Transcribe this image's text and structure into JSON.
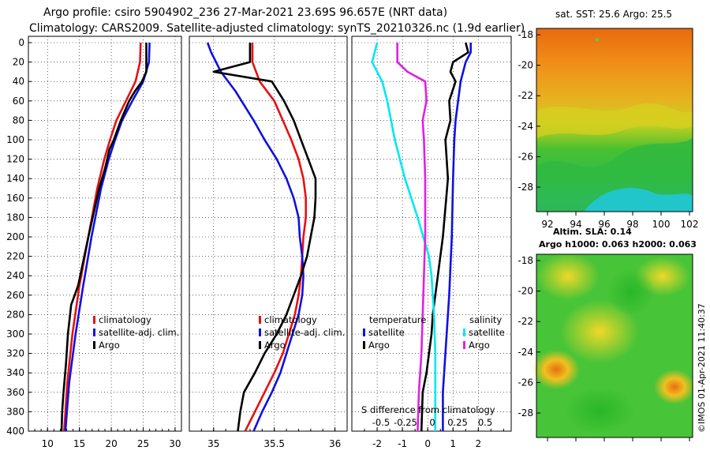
{
  "header": {
    "title_line1": "Argo profile: csiro 5904902_236 27-Mar-2021 23.69S 96.657E (NRT data)",
    "title_line2": "Climatology: CARS2009. Satellite-adjusted climatology: synTS_20210326.nc (1.9d earlier)"
  },
  "colors": {
    "climatology": "#e81010",
    "satellite": "#1010e0",
    "argo": "#000000",
    "sat_salinity": "#00e8f0",
    "argo_salinity": "#e020e0"
  },
  "map_sst": {
    "title": "sat. SST: 25.6  Argo: 25.5",
    "lat_ticks": [
      "-18",
      "-20",
      "-22",
      "-24",
      "-26",
      "-28"
    ],
    "lon_ticks": [
      "92",
      "94",
      "96",
      "98",
      "100",
      "102"
    ]
  },
  "map_sla": {
    "title_line1": "Altim. SLA: 0.14",
    "title_line2": "Argo h1000: 0.063 h2000: 0.063",
    "lat_ticks": [
      "-18",
      "-20",
      "-22",
      "-24",
      "-26",
      "-28"
    ]
  },
  "credit": "©IMOS 01-Apr-2021 11:40:37",
  "chart_data": [
    {
      "type": "line",
      "name": "temperature",
      "xlim": [
        7,
        31
      ],
      "ylim": [
        400,
        0
      ],
      "yticks": [
        "0",
        "20",
        "40",
        "60",
        "80",
        "100",
        "120",
        "140",
        "160",
        "180",
        "200",
        "220",
        "240",
        "260",
        "280",
        "300",
        "320",
        "340",
        "360",
        "380",
        "400"
      ],
      "xticks": [
        "10",
        "15",
        "20",
        "25",
        "30"
      ],
      "legend": [
        "climatology",
        "satellite-adj. clim.",
        "Argo"
      ],
      "series": [
        {
          "name": "climatology",
          "color_key": "climatology",
          "depth": [
            0,
            20,
            40,
            60,
            80,
            100,
            120,
            150,
            200,
            250,
            300,
            350,
            400
          ],
          "values": [
            24.6,
            24.5,
            23.8,
            22.3,
            20.8,
            19.8,
            18.9,
            17.8,
            16.4,
            15.0,
            13.9,
            13.1,
            12.6
          ]
        },
        {
          "name": "satellite-adj. clim.",
          "color_key": "satellite",
          "depth": [
            0,
            20,
            40,
            60,
            80,
            100,
            120,
            150,
            200,
            250,
            300,
            350,
            400
          ],
          "values": [
            26.0,
            25.9,
            25.0,
            23.3,
            21.7,
            20.6,
            19.6,
            18.4,
            16.9,
            15.6,
            14.4,
            13.4,
            12.8
          ]
        },
        {
          "name": "Argo",
          "color_key": "argo",
          "depth": [
            0,
            10,
            30,
            40,
            50,
            60,
            80,
            100,
            110,
            130,
            150,
            200,
            250,
            270,
            300,
            330,
            360,
            380,
            400
          ],
          "values": [
            25.5,
            25.5,
            25.5,
            24.8,
            23.7,
            22.8,
            21.5,
            20.4,
            19.7,
            19.0,
            18.1,
            16.4,
            14.8,
            13.7,
            13.2,
            12.9,
            12.5,
            12.3,
            12.2
          ]
        }
      ]
    },
    {
      "type": "line",
      "name": "salinity",
      "xlim": [
        34.8,
        36.1
      ],
      "ylim": [
        400,
        0
      ],
      "xticks": [
        "35",
        "35.5",
        "36"
      ],
      "legend": [
        "climatology",
        "satellite-adj. clim.",
        "Argo"
      ],
      "series": [
        {
          "name": "climatology",
          "color_key": "climatology",
          "depth": [
            0,
            20,
            40,
            60,
            80,
            100,
            120,
            140,
            160,
            180,
            200,
            220,
            240,
            260,
            280,
            300,
            320,
            340,
            360,
            380,
            400
          ],
          "values": [
            35.32,
            35.32,
            35.38,
            35.5,
            35.57,
            35.64,
            35.7,
            35.74,
            35.76,
            35.76,
            35.74,
            35.73,
            35.72,
            35.7,
            35.67,
            35.62,
            35.57,
            35.5,
            35.42,
            35.34,
            35.26
          ]
        },
        {
          "name": "satellite-adj. clim.",
          "color_key": "satellite",
          "depth": [
            0,
            10,
            30,
            50,
            80,
            100,
            120,
            140,
            160,
            180,
            200,
            220,
            240,
            260,
            280,
            300,
            320,
            340,
            360,
            380,
            400
          ],
          "values": [
            34.95,
            34.98,
            35.06,
            35.18,
            35.33,
            35.42,
            35.52,
            35.6,
            35.66,
            35.7,
            35.71,
            35.73,
            35.74,
            35.73,
            35.7,
            35.65,
            35.6,
            35.55,
            35.48,
            35.4,
            35.33
          ]
        },
        {
          "name": "Argo",
          "color_key": "argo",
          "depth": [
            0,
            20,
            30,
            40,
            60,
            80,
            100,
            120,
            140,
            160,
            180,
            200,
            220,
            240,
            260,
            280,
            300,
            320,
            340,
            360,
            380,
            400
          ],
          "values": [
            35.3,
            35.3,
            35.0,
            35.48,
            35.58,
            35.66,
            35.72,
            35.78,
            35.84,
            35.84,
            35.83,
            35.8,
            35.77,
            35.72,
            35.66,
            35.6,
            35.52,
            35.42,
            35.34,
            35.25,
            35.22,
            35.2
          ]
        }
      ]
    },
    {
      "type": "line",
      "name": "difference from climatology",
      "xlim": [
        -3,
        3.3
      ],
      "ylim": [
        400,
        0
      ],
      "xticks": [
        "-2",
        "-1",
        "0",
        "1",
        "2"
      ],
      "sub_xticks": [
        "-0.5",
        "-0.25",
        "0",
        "0.25",
        "0.5"
      ],
      "xlabel": "S difference from climatology",
      "legend_groups": {
        "temperature": [
          "satellite",
          "Argo"
        ],
        "salinity": [
          "satellite",
          "Argo"
        ]
      },
      "series": [
        {
          "name": "temperature satellite",
          "color_key": "satellite",
          "depth": [
            0,
            10,
            20,
            40,
            60,
            80,
            100,
            140,
            200,
            260,
            300,
            340,
            360,
            380,
            400
          ],
          "values": [
            1.7,
            1.7,
            1.5,
            1.3,
            1.2,
            1.1,
            1.05,
            1.0,
            0.95,
            0.85,
            0.75,
            0.65,
            0.6,
            0.6,
            0.6
          ]
        },
        {
          "name": "temperature Argo",
          "color_key": "argo",
          "depth": [
            0,
            10,
            20,
            30,
            40,
            60,
            80,
            100,
            140,
            200,
            240,
            280,
            300,
            340,
            360,
            400
          ],
          "values": [
            1.5,
            1.6,
            1.0,
            0.9,
            1.1,
            0.85,
            0.9,
            0.7,
            0.8,
            0.6,
            0.4,
            0.2,
            0.15,
            -0.05,
            -0.2,
            -0.25
          ]
        },
        {
          "name": "salinity satellite",
          "color_key": "sat_salinity",
          "depth": [
            0,
            20,
            40,
            60,
            100,
            140,
            180,
            220,
            240,
            280,
            320,
            360,
            400
          ],
          "values": [
            -2.0,
            -2.2,
            -1.8,
            -1.6,
            -1.3,
            -0.9,
            -0.4,
            0.05,
            0.15,
            0.25,
            0.3,
            0.3,
            0.3
          ]
        },
        {
          "name": "salinity Argo",
          "color_key": "argo_salinity",
          "depth": [
            0,
            20,
            30,
            40,
            60,
            80,
            100,
            140,
            200,
            240,
            280,
            320,
            360,
            400
          ],
          "values": [
            -1.2,
            -1.2,
            -0.8,
            -0.1,
            -0.05,
            -0.2,
            -0.15,
            -0.1,
            -0.1,
            -0.15,
            -0.2,
            -0.25,
            -0.35,
            -0.4
          ]
        }
      ]
    }
  ]
}
